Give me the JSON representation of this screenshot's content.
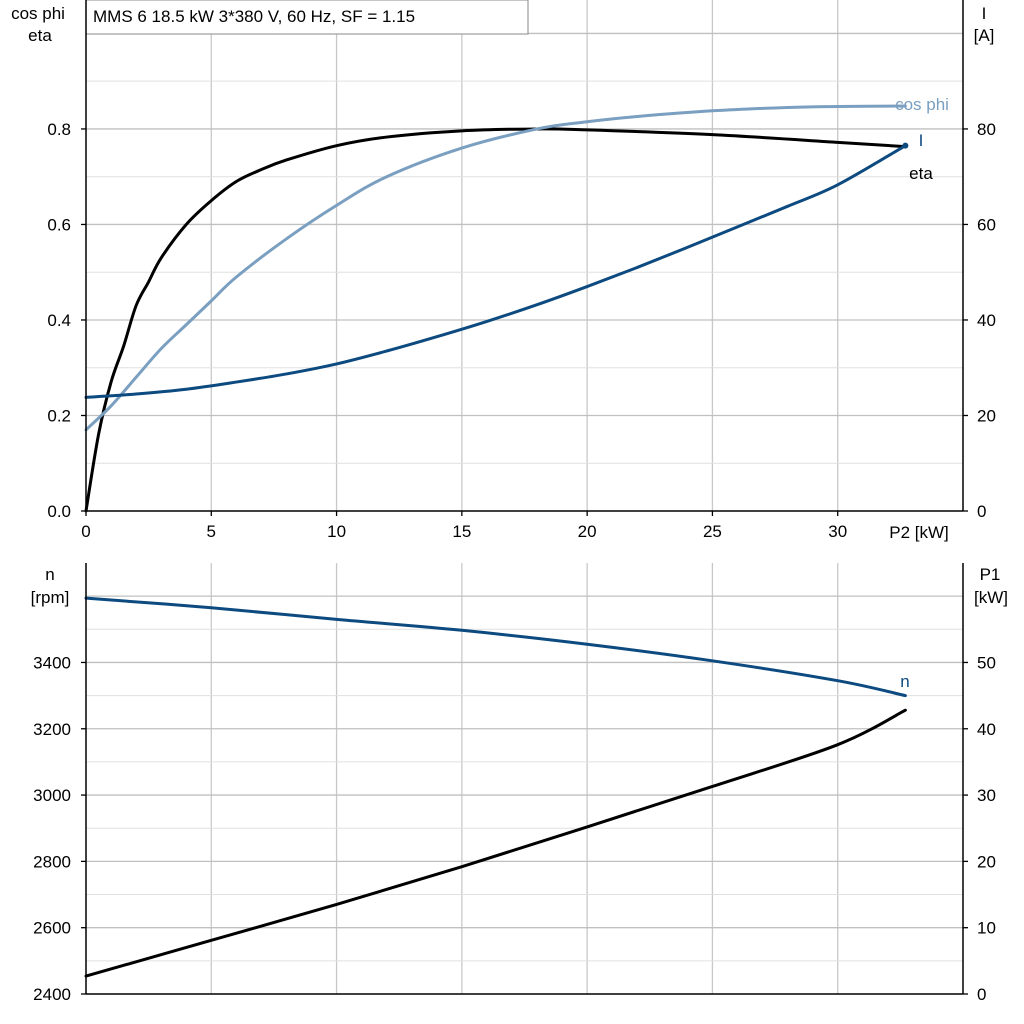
{
  "title": "MMS 6   18.5 kW   3*380 V, 60 Hz, SF = 1.15",
  "colors": {
    "dark_blue": "#0c4a80",
    "light_blue": "#7a9fc0",
    "black": "#000000",
    "grid": "#c8c8c8"
  },
  "chart_data": [
    {
      "type": "line",
      "panel": "top",
      "x_label": "P2 [kW]",
      "xlim": [
        0,
        35
      ],
      "x_ticks": [
        "0",
        "5",
        "10",
        "15",
        "20",
        "25",
        "30"
      ],
      "left_axis": {
        "label_line1": "cos phi",
        "label_line2": "eta",
        "ylim": [
          0,
          1.07
        ],
        "ticks": [
          "0.0",
          "0.2",
          "0.4",
          "0.6",
          "0.8"
        ]
      },
      "right_axis": {
        "label_line1": "I",
        "label_line2": "[A]",
        "ylim": [
          0,
          107
        ],
        "ticks": [
          "0",
          "20",
          "40",
          "60",
          "80"
        ]
      },
      "grid": true,
      "series": [
        {
          "name": "eta",
          "axis": "left",
          "color": "#000000",
          "x": [
            0,
            0.5,
            1,
            1.5,
            2,
            2.5,
            3,
            4,
            5,
            6,
            7,
            8,
            10,
            12,
            15,
            18,
            20,
            25,
            30,
            32.7
          ],
          "y": [
            0.0,
            0.16,
            0.27,
            0.345,
            0.43,
            0.48,
            0.53,
            0.6,
            0.65,
            0.69,
            0.715,
            0.735,
            0.765,
            0.783,
            0.796,
            0.8,
            0.798,
            0.788,
            0.772,
            0.763
          ]
        },
        {
          "name": "cos phi",
          "axis": "left",
          "color": "#7a9fc0",
          "x": [
            0,
            1,
            2,
            3,
            4,
            5,
            6,
            8,
            10,
            12,
            15,
            18,
            20,
            22,
            25,
            28,
            30,
            32.7
          ],
          "y": [
            0.17,
            0.22,
            0.28,
            0.34,
            0.39,
            0.44,
            0.49,
            0.57,
            0.64,
            0.7,
            0.76,
            0.8,
            0.815,
            0.826,
            0.838,
            0.845,
            0.847,
            0.848
          ]
        },
        {
          "name": "I",
          "axis": "right",
          "color": "#0c4a80",
          "x": [
            0,
            2,
            4,
            6,
            8,
            10,
            12,
            14,
            16,
            18,
            20,
            22,
            24,
            26,
            28,
            30,
            32.7
          ],
          "y": [
            23.8,
            24.5,
            25.5,
            27,
            28.7,
            30.8,
            33.5,
            36.5,
            39.7,
            43.2,
            47,
            51,
            55.2,
            59.5,
            63.8,
            68.3,
            76.5
          ]
        }
      ],
      "labels": {
        "eta": "eta",
        "cos_phi": "cos phi",
        "I": "I"
      }
    },
    {
      "type": "line",
      "panel": "bottom",
      "xlim": [
        0,
        35
      ],
      "left_axis": {
        "label_line1": "n",
        "label_line2": "[rpm]",
        "ylim": [
          2400,
          3700
        ],
        "ticks": [
          "2400",
          "2600",
          "2800",
          "3000",
          "3200",
          "3400"
        ]
      },
      "right_axis": {
        "label_line1": "P1",
        "label_line2": "[kW]",
        "ylim": [
          0,
          65
        ],
        "ticks": [
          "0",
          "10",
          "20",
          "30",
          "40",
          "50"
        ]
      },
      "grid": true,
      "series": [
        {
          "name": "n",
          "axis": "left",
          "color": "#0c4a80",
          "x": [
            0,
            5,
            10,
            15,
            20,
            25,
            30,
            32.7
          ],
          "y": [
            3594,
            3565,
            3530,
            3497,
            3455,
            3405,
            3345,
            3300
          ]
        },
        {
          "name": "P1",
          "axis": "right",
          "color": "#000000",
          "x": [
            0,
            5,
            10,
            15,
            20,
            25,
            30,
            32.7
          ],
          "y": [
            2.7,
            8.1,
            13.5,
            19.2,
            25.2,
            31.3,
            37.6,
            42.8
          ]
        }
      ],
      "labels": {
        "n": "n"
      }
    }
  ]
}
